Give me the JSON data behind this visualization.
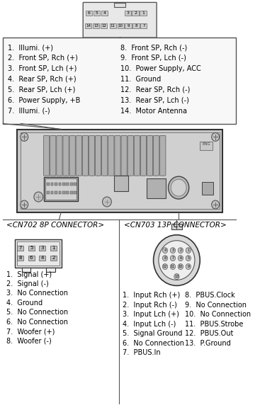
{
  "bg_color": "#ffffff",
  "text_color": "#000000",
  "left_labels": [
    "1.  Illumi. (+)",
    "2.  Front SP, Rch (+)",
    "3.  Front SP, Lch (+)",
    "4.  Rear SP, Rch (+)",
    "5.  Rear SP, Lch (+)",
    "6.  Power Supply, +B",
    "7.  Illumi. (-)"
  ],
  "right_labels": [
    "8.  Front SP, Rch (-)",
    "9.  Front SP, Lch (-)",
    "10.  Power Supply, ACC",
    "11.  Ground",
    "12.  Rear SP, Rch (-)",
    "13.  Rear SP, Lch (-)",
    "14.  Motor Antenna"
  ],
  "cn702_title": "<CN702 8P CONNECTOR>",
  "cn702_labels": [
    "1.  Signal (+)",
    "2.  Signal (-)",
    "3.  No Connection",
    "4.  Ground",
    "5.  No Connection",
    "6.  No Connection",
    "7.  Woofer (+)",
    "8.  Woofer (-)"
  ],
  "cn703_title": "<CN703 13P CONNECTOR>",
  "cn703_left_labels": [
    "1.  Input Rch (+)",
    "2.  Input Rch (-)",
    "3.  Input Lch (+)",
    "4.  Input Lch (-)",
    "5.  Signal Ground",
    "6.  No Connection",
    "7.  PBUS.In"
  ],
  "cn703_right_labels": [
    "8.  PBUS.Clock",
    "9.  No Connection",
    "10.  No Connection",
    "11.  PBUS.Strobe",
    "12.  PBUS.Out",
    "13.  P.Ground"
  ]
}
